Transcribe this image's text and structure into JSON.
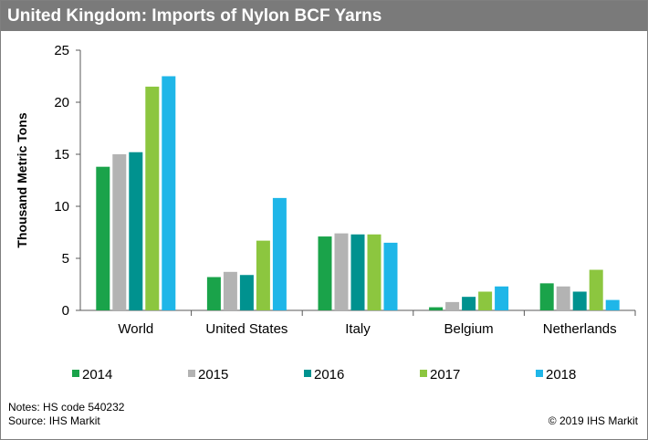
{
  "header": {
    "title": "United Kingdom: Imports of Nylon BCF Yarns"
  },
  "footer": {
    "notes": "Notes: HS code 540232",
    "source": "Source: IHS Markit",
    "copyright": "© 2019 IHS Markit"
  },
  "chart_data": {
    "type": "bar",
    "title": "United Kingdom: Imports of Nylon BCF Yarns",
    "xlabel": "",
    "ylabel": "Thousand Metric Tons",
    "ylim": [
      0,
      25
    ],
    "yticks": [
      0,
      5,
      10,
      15,
      20,
      25
    ],
    "grid": false,
    "legend_position": "bottom",
    "categories": [
      "World",
      "United States",
      "Italy",
      "Belgium",
      "Netherlands"
    ],
    "series": [
      {
        "name": "2014",
        "color": "#1aa34a",
        "values": [
          13.8,
          3.2,
          7.1,
          0.3,
          2.6
        ]
      },
      {
        "name": "2015",
        "color": "#b3b3b3",
        "values": [
          15.0,
          3.7,
          7.4,
          0.8,
          2.3
        ]
      },
      {
        "name": "2016",
        "color": "#00928f",
        "values": [
          15.2,
          3.4,
          7.3,
          1.3,
          1.8
        ]
      },
      {
        "name": "2017",
        "color": "#8cc63f",
        "values": [
          21.5,
          6.7,
          7.3,
          1.8,
          3.9
        ]
      },
      {
        "name": "2018",
        "color": "#1fb6e8",
        "values": [
          22.5,
          10.8,
          6.5,
          2.3,
          1.0
        ]
      }
    ]
  }
}
